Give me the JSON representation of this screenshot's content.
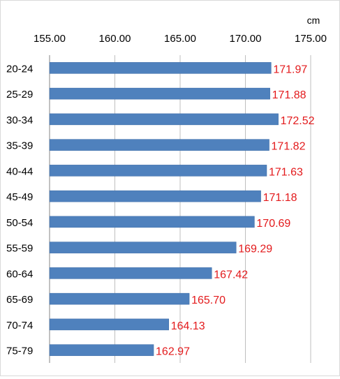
{
  "chart_data": {
    "type": "bar",
    "orientation": "horizontal",
    "unit_label": "cm",
    "axis_position": "top",
    "xlim": [
      155,
      175
    ],
    "ticks": [
      155,
      160,
      165,
      170,
      175
    ],
    "tick_labels": [
      "155.00",
      "160.00",
      "165.00",
      "170.00",
      "175.00"
    ],
    "grid": true,
    "legend": "none",
    "categories": [
      "20-24",
      "25-29",
      "30-34",
      "35-39",
      "40-44",
      "45-49",
      "50-54",
      "55-59",
      "60-64",
      "65-69",
      "70-74",
      "75-79"
    ],
    "values": [
      171.97,
      171.88,
      172.52,
      171.82,
      171.63,
      171.18,
      170.69,
      169.29,
      167.42,
      165.7,
      164.13,
      162.97
    ],
    "value_labels": [
      "171.97",
      "171.88",
      "172.52",
      "171.82",
      "171.63",
      "171.18",
      "170.69",
      "169.29",
      "167.42",
      "165.70",
      "164.13",
      "162.97"
    ],
    "colors": {
      "bar": "#4f81bd",
      "bar_edge": "#3a6aa5",
      "value_label": "#e31a1c",
      "grid": "#bfbfbf",
      "axis": "#868686",
      "text": "#000000"
    }
  }
}
